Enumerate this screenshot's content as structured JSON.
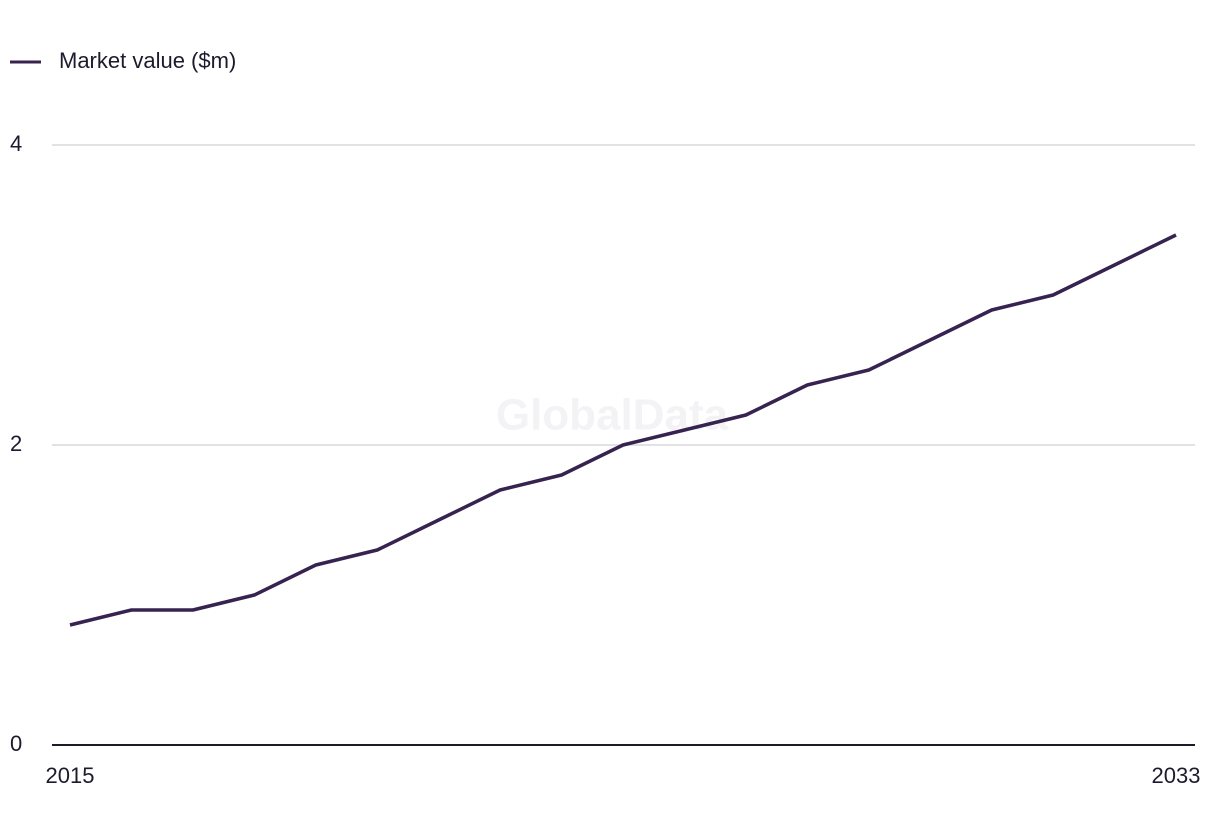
{
  "chart_data": {
    "type": "line",
    "watermark": "GlobalData",
    "x": [
      2015,
      2016,
      2017,
      2018,
      2019,
      2020,
      2021,
      2022,
      2023,
      2024,
      2025,
      2026,
      2027,
      2028,
      2029,
      2030,
      2031,
      2032,
      2033
    ],
    "series": [
      {
        "name": "Market value ($m)",
        "color": "#36234f",
        "values": [
          0.8,
          0.9,
          0.9,
          1.0,
          1.2,
          1.3,
          1.5,
          1.7,
          1.8,
          2.0,
          2.1,
          2.2,
          2.4,
          2.5,
          2.7,
          2.9,
          3.0,
          3.2,
          3.4
        ]
      }
    ],
    "xlim": [
      2015,
      2033
    ],
    "xticks": [
      2015,
      2033
    ],
    "ylim": [
      0,
      4
    ],
    "yticks": [
      0,
      2,
      4
    ],
    "grid": true
  }
}
